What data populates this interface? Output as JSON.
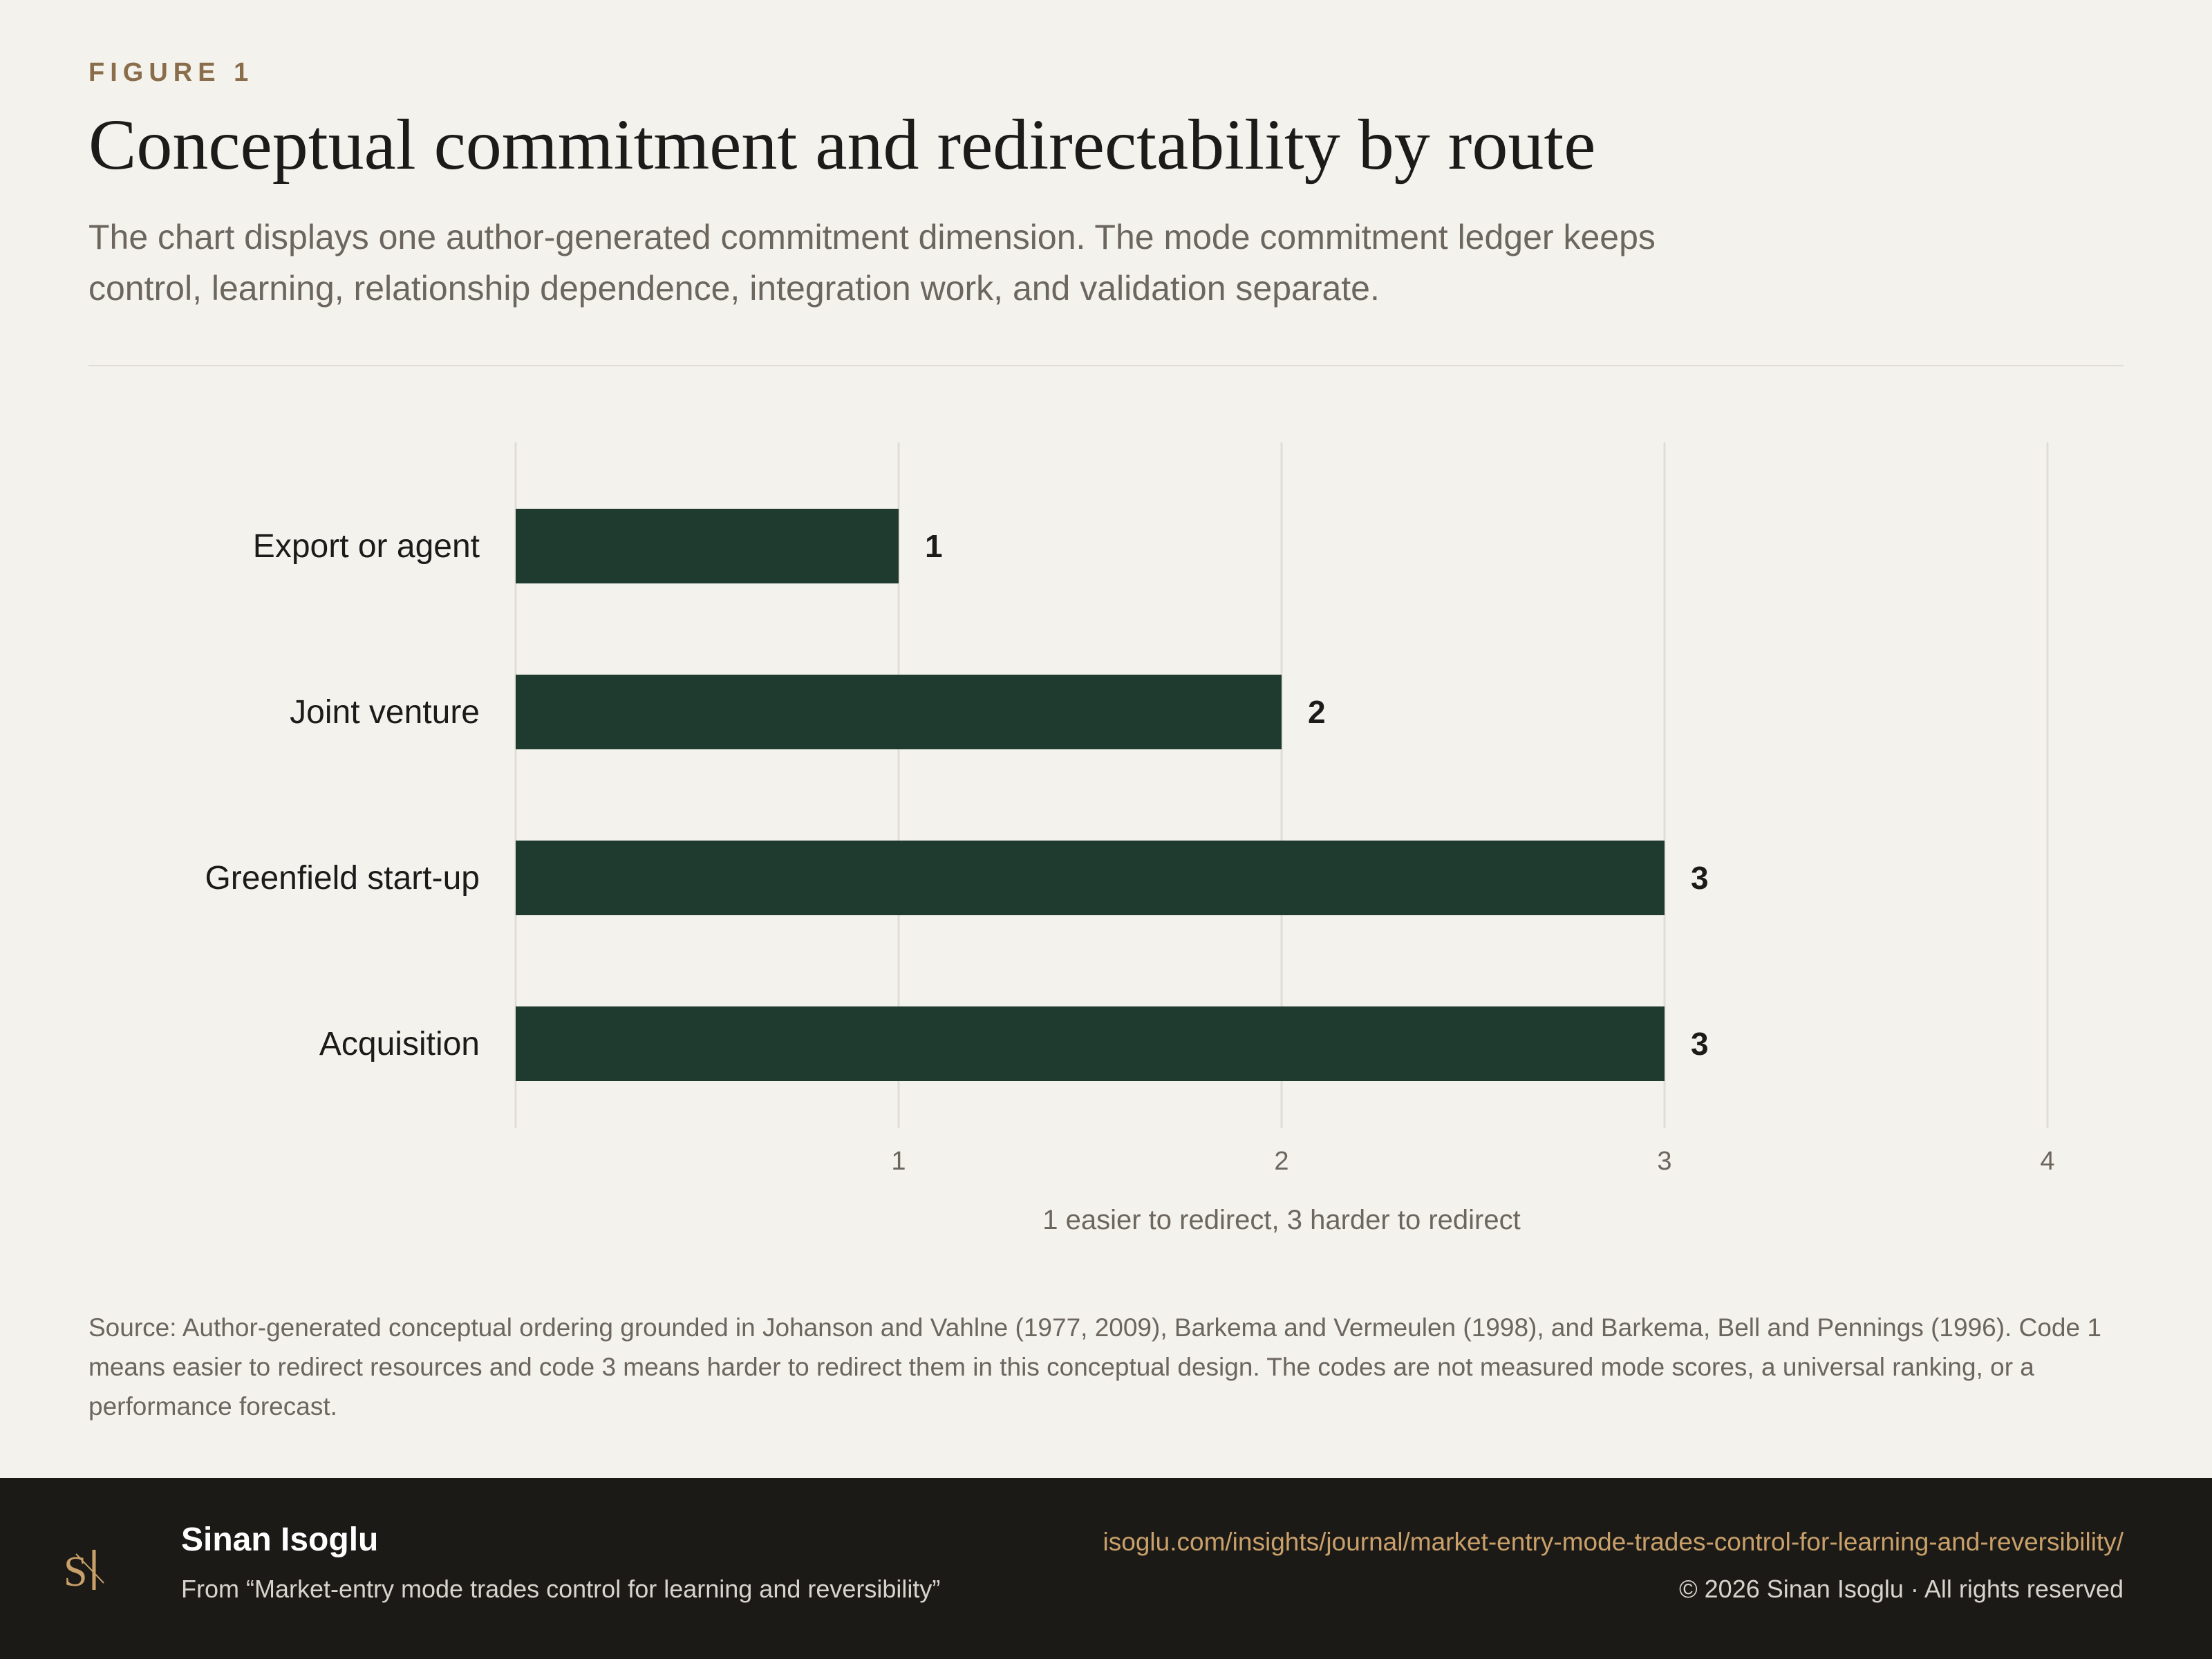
{
  "header": {
    "eyebrow": "FIGURE 1",
    "title": "Conceptual commitment and redirectability by route",
    "subtitle": "The chart displays one author-generated commitment dimension. The mode commitment ledger keeps control, learning, relationship dependence, integration work, and validation separate."
  },
  "chart_data": {
    "type": "bar",
    "orientation": "horizontal",
    "categories": [
      "Export or agent",
      "Joint venture",
      "Greenfield start-up",
      "Acquisition"
    ],
    "values": [
      1,
      2,
      3,
      3
    ],
    "xlabel": "1 easier to redirect, 3 harder to redirect",
    "ylabel": "",
    "xlim": [
      0,
      4
    ],
    "xticks": [
      1,
      2,
      3,
      4
    ],
    "grid": "vertical",
    "bar_color": "#1f3a2f"
  },
  "source": "Source: Author-generated conceptual ordering grounded in Johanson and Vahlne (1977, 2009), Barkema and Vermeulen (1998), and Barkema, Bell and Pennings (1996). Code 1 means easier to redirect resources and code 3 means harder to redirect them in this conceptual design. The codes are not measured mode scores, a universal ranking, or a performance forecast.",
  "footer": {
    "logo_icon": "si-monogram-icon",
    "author": "Sinan Isoglu",
    "from": "From “Market-entry mode trades control for learning and reversibility”",
    "url": "isoglu.com/insights/journal/market-entry-mode-trades-control-for-learning-and-reversibility/",
    "copyright": "© 2026 Sinan Isoglu · All rights reserved",
    "accent_color": "#c9a06a"
  }
}
